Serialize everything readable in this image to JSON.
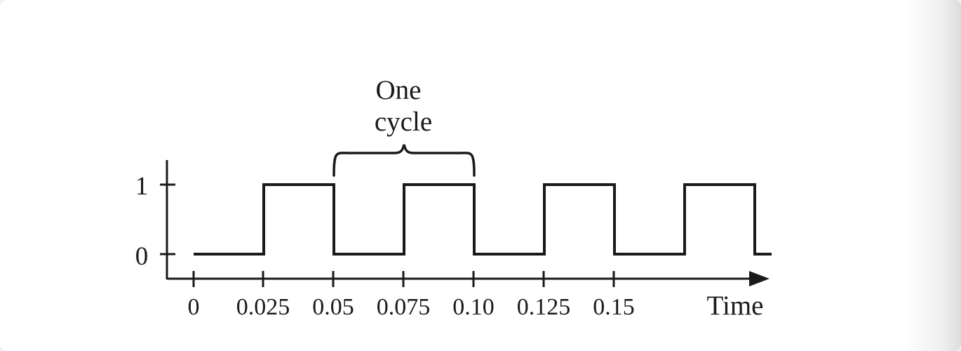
{
  "diagram": {
    "annotation_lines": [
      "One",
      "cycle"
    ],
    "x_axis_label": "Time",
    "y_ticks": [
      "1",
      "0"
    ],
    "x_ticks": [
      "0",
      "0.025",
      "0.05",
      "0.075",
      "0.10",
      "0.125",
      "0.15"
    ],
    "line_color": "#1a1a1a"
  },
  "chart_data": {
    "type": "line",
    "title": "",
    "xlabel": "Time",
    "ylabel": "",
    "x": [
      0,
      0.025,
      0.025,
      0.05,
      0.05,
      0.075,
      0.075,
      0.1,
      0.1,
      0.125,
      0.125,
      0.15,
      0.15,
      0.175,
      0.175,
      0.2,
      0.2,
      0.206
    ],
    "y": [
      0,
      0,
      1,
      1,
      0,
      0,
      1,
      1,
      0,
      0,
      1,
      1,
      0,
      0,
      1,
      1,
      0,
      0
    ],
    "period": 0.05,
    "cycle_marker": [
      0.05,
      0.1
    ],
    "yticks": [
      0,
      1
    ],
    "xticks": [
      0,
      0.025,
      0.05,
      0.075,
      0.1,
      0.125,
      0.15
    ]
  }
}
